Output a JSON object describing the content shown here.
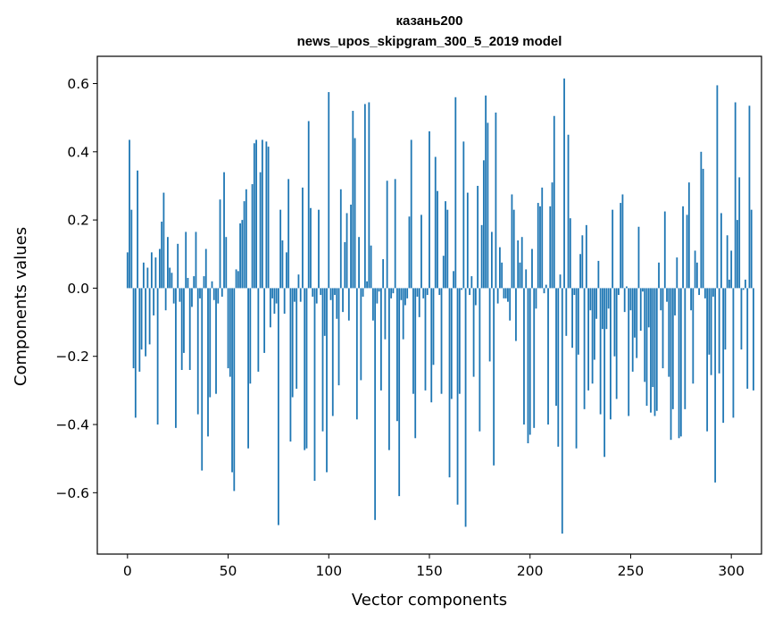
{
  "chart_data": {
    "type": "bar",
    "title": "казань200",
    "subtitle": "news_upos_skipgram_300_5_2019 model",
    "xlabel": "Vector components",
    "ylabel": "Components values",
    "xlim": [
      -15,
      315
    ],
    "ylim": [
      -0.78,
      0.68
    ],
    "xticks": [
      0,
      50,
      100,
      150,
      200,
      250,
      300
    ],
    "yticks": [
      -0.6,
      -0.4,
      -0.2,
      0.0,
      0.2,
      0.4,
      0.6
    ],
    "xtick_labels": [
      "0",
      "50",
      "100",
      "150",
      "200",
      "250",
      "300"
    ],
    "ytick_labels": [
      "−0.6",
      "−0.4",
      "−0.2",
      "0.0",
      "0.2",
      "0.4",
      "0.6"
    ],
    "grid": false,
    "bar_color": "#1f77b4",
    "values": [
      0.105,
      0.435,
      0.23,
      -0.235,
      -0.38,
      0.345,
      -0.245,
      -0.18,
      0.075,
      -0.2,
      0.06,
      -0.165,
      0.105,
      -0.08,
      0.09,
      -0.4,
      0.115,
      0.195,
      0.28,
      -0.065,
      0.15,
      0.06,
      0.045,
      -0.045,
      -0.41,
      0.13,
      -0.04,
      -0.24,
      -0.19,
      0.165,
      0.03,
      -0.24,
      -0.055,
      0.035,
      0.165,
      -0.37,
      -0.03,
      -0.535,
      0.035,
      0.115,
      -0.435,
      -0.32,
      0.02,
      -0.035,
      -0.31,
      -0.045,
      0.26,
      -0.025,
      0.34,
      0.15,
      -0.235,
      -0.26,
      -0.54,
      -0.595,
      0.055,
      0.05,
      0.19,
      0.2,
      0.255,
      0.29,
      -0.47,
      -0.28,
      0.305,
      0.425,
      0.435,
      -0.245,
      0.34,
      0.435,
      -0.19,
      0.43,
      0.415,
      -0.115,
      -0.03,
      -0.075,
      -0.045,
      -0.695,
      0.23,
      0.14,
      -0.075,
      0.105,
      0.32,
      -0.45,
      -0.32,
      -0.04,
      -0.295,
      0.04,
      -0.04,
      0.295,
      -0.475,
      -0.47,
      0.49,
      0.235,
      -0.025,
      -0.565,
      -0.045,
      0.23,
      -0.02,
      -0.42,
      -0.14,
      -0.54,
      0.575,
      -0.035,
      -0.375,
      -0.02,
      -0.09,
      -0.285,
      0.29,
      -0.07,
      0.135,
      0.22,
      -0.095,
      0.245,
      0.52,
      0.44,
      -0.385,
      0.15,
      -0.27,
      -0.025,
      0.54,
      0.02,
      0.545,
      0.125,
      -0.095,
      -0.68,
      -0.045,
      -0.01,
      -0.3,
      0.085,
      -0.15,
      0.315,
      -0.475,
      -0.03,
      -0.015,
      0.32,
      -0.39,
      -0.61,
      -0.035,
      -0.15,
      -0.05,
      -0.03,
      0.21,
      0.435,
      -0.31,
      -0.44,
      -0.025,
      -0.085,
      0.215,
      -0.03,
      -0.3,
      -0.02,
      0.46,
      -0.335,
      -0.225,
      0.385,
      0.285,
      -0.02,
      -0.31,
      0.095,
      0.255,
      0.23,
      -0.555,
      -0.325,
      0.05,
      0.56,
      -0.635,
      -0.31,
      -0.005,
      0.43,
      -0.7,
      0.28,
      -0.02,
      0.035,
      -0.26,
      -0.05,
      0.3,
      -0.42,
      0.185,
      0.375,
      0.565,
      0.485,
      -0.215,
      0.165,
      -0.52,
      0.515,
      -0.045,
      0.12,
      0.075,
      -0.03,
      -0.03,
      -0.04,
      -0.095,
      0.275,
      0.23,
      -0.155,
      0.14,
      0.075,
      0.15,
      -0.4,
      0.055,
      -0.455,
      -0.43,
      0.115,
      -0.41,
      -0.06,
      0.25,
      0.24,
      0.295,
      -0.015,
      0.01,
      -0.4,
      0.24,
      0.31,
      0.505,
      -0.345,
      -0.465,
      0.04,
      -0.72,
      0.615,
      -0.14,
      0.45,
      0.205,
      -0.175,
      -0.02,
      -0.47,
      -0.195,
      0.1,
      0.155,
      -0.355,
      0.185,
      -0.3,
      -0.065,
      -0.28,
      -0.21,
      -0.09,
      0.08,
      -0.37,
      -0.12,
      -0.495,
      -0.12,
      -0.06,
      -0.385,
      0.23,
      -0.2,
      -0.325,
      -0.02,
      0.25,
      0.275,
      -0.07,
      0.005,
      -0.375,
      -0.065,
      -0.245,
      -0.145,
      -0.205,
      0.18,
      -0.125,
      -0.01,
      -0.275,
      -0.345,
      -0.115,
      -0.365,
      -0.29,
      -0.375,
      -0.36,
      0.075,
      -0.065,
      -0.235,
      0.225,
      -0.04,
      -0.26,
      -0.445,
      -0.355,
      -0.08,
      0.09,
      -0.44,
      -0.435,
      0.24,
      -0.355,
      0.215,
      0.31,
      -0.065,
      -0.28,
      0.11,
      0.075,
      -0.02,
      0.4,
      0.35,
      -0.03,
      -0.42,
      -0.195,
      -0.255,
      -0.025,
      -0.57,
      0.595,
      -0.25,
      0.22,
      -0.395,
      -0.18,
      0.155,
      0.025,
      0.11,
      -0.38,
      0.545,
      0.2,
      0.325,
      -0.18,
      -0.005,
      0.025,
      -0.295,
      0.535,
      0.23,
      -0.3
    ]
  }
}
